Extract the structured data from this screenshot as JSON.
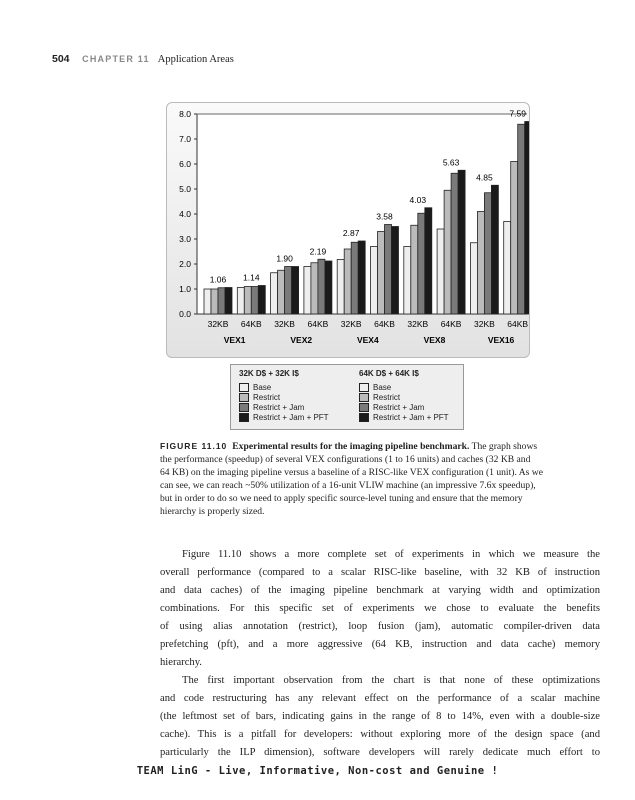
{
  "header": {
    "page_number": "504",
    "chapter": "CHAPTER 11",
    "section": "Application Areas"
  },
  "chart_data": {
    "type": "bar",
    "ylim": [
      0,
      8
    ],
    "yticks": [
      "0.0",
      "1.0",
      "2.0",
      "3.0",
      "4.0",
      "5.0",
      "6.0",
      "7.0",
      "8.0"
    ],
    "grid": false,
    "groups": [
      "VEX1",
      "VEX2",
      "VEX4",
      "VEX8",
      "VEX16"
    ],
    "subcategories": [
      "32KB",
      "64KB"
    ],
    "series": [
      {
        "name": "Base",
        "color": "#eeeeee",
        "values": [
          1.0,
          1.06,
          1.65,
          1.9,
          2.18,
          2.7,
          2.7,
          3.4,
          2.85,
          3.7
        ]
      },
      {
        "name": "Restrict",
        "color": "#bbbbbb",
        "values": [
          1.0,
          1.1,
          1.75,
          2.05,
          2.6,
          3.3,
          3.55,
          4.95,
          4.1,
          6.1
        ]
      },
      {
        "name": "Restrict + Jam",
        "color": "#7a7a7a",
        "values": [
          1.05,
          1.1,
          1.9,
          2.19,
          2.87,
          3.58,
          4.03,
          5.63,
          4.85,
          7.59
        ]
      },
      {
        "name": "Restrict + Jam + PFT",
        "color": "#1a1a1a",
        "values": [
          1.06,
          1.14,
          1.9,
          2.12,
          2.92,
          3.5,
          4.25,
          5.75,
          5.15,
          7.7
        ]
      }
    ],
    "data_labels": [
      "1.06",
      "1.14",
      "1.90",
      "2.19",
      "2.87",
      "3.58",
      "4.03",
      "5.63",
      "4.85",
      "7.59"
    ],
    "legend": {
      "placement": "bottom",
      "col1_title": "32K D$ + 32K I$",
      "col2_title": "64K D$ + 64K I$",
      "items": [
        "Base",
        "Restrict",
        "Restrict + Jam",
        "Restrict + Jam + PFT"
      ]
    }
  },
  "caption": {
    "label": "FIGURE 11.10",
    "title": "Experimental results for the imaging pipeline benchmark.",
    "lines": [
      " The graph shows",
      "the performance (speedup) of several VEX configurations (1 to 16 units) and caches (32 KB and",
      "64 KB) on the imaging pipeline versus a baseline of a RISC-like VEX configuration (1 unit). As we",
      "can see, we can reach ~50% utilization of a 16-unit VLIW machine (an impressive 7.6x speedup),",
      "but in order to do so we need to apply specific source-level tuning and ensure that the memory",
      "hierarchy is properly sized."
    ]
  },
  "body": {
    "para1": [
      "Figure 11.10 shows a more complete set of experiments in which we measure the",
      "overall performance (compared to a scalar RISC-like baseline, with 32 KB of instruction",
      "and data caches) of the imaging pipeline benchmark at varying width and optimization",
      "combinations. For this specific set of experiments we chose to evaluate the benefits",
      "of using alias annotation (restrict), loop fusion (jam), automatic compiler-driven data",
      "prefetching (pft), and a more aggressive (64 KB, instruction and data cache) memory",
      "hierarchy."
    ],
    "para2": [
      "The first important observation from the chart is that none of these optimizations",
      "and code restructuring has any relevant effect on the performance of a scalar machine",
      "(the leftmost set of bars, indicating gains in the range of 8 to 14%, even with a double-size",
      "cache). This is a pitfall for developers: without exploring more of the design space (and",
      "particularly the ILP dimension), software developers will rarely dedicate much effort to"
    ]
  },
  "footer": "TEAM LinG - Live, Informative, Non-cost and Genuine !"
}
